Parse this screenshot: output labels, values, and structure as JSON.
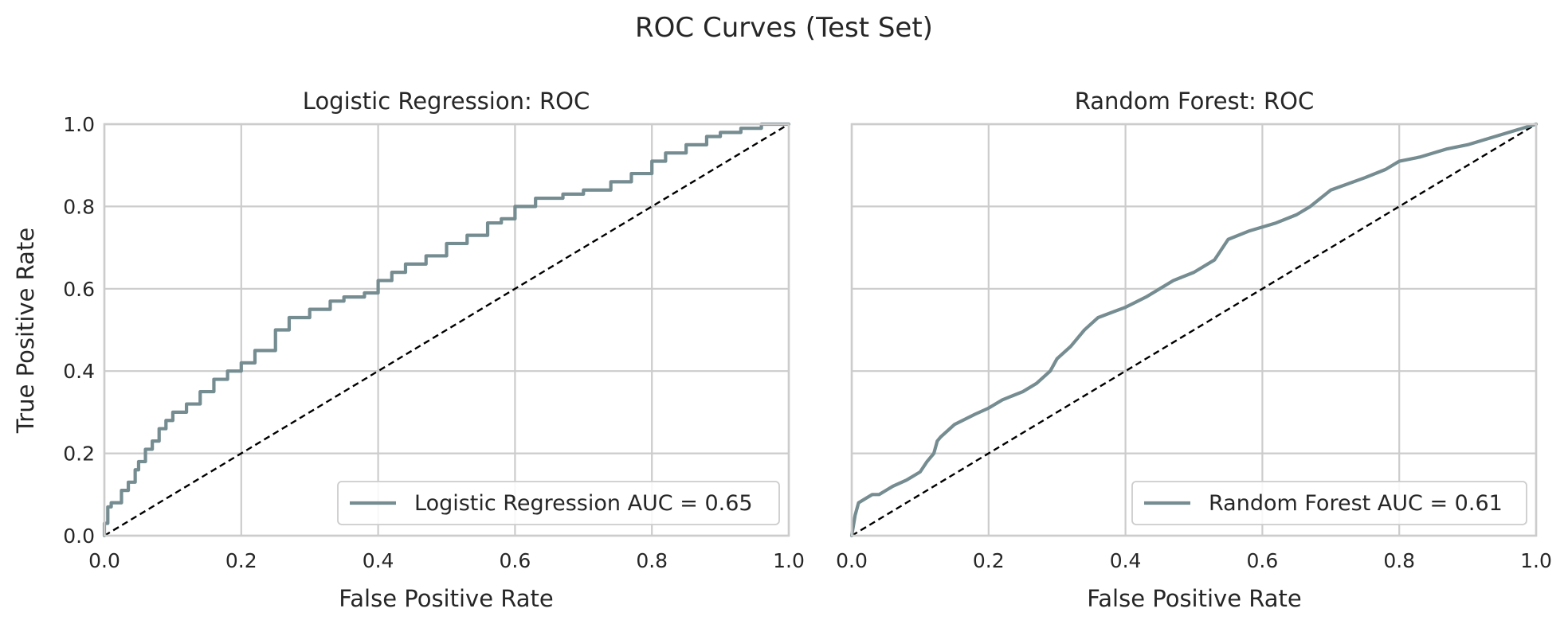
{
  "figure": {
    "title": "ROC Curves (Test Set)"
  },
  "colors": {
    "curve": "#758c91",
    "diagonal": "#000000",
    "grid": "#cccccc"
  },
  "chart_data": [
    {
      "type": "line",
      "title": "Logistic Regression: ROC",
      "xlabel": "False Positive Rate",
      "ylabel": "True Positive Rate",
      "xlim": [
        0,
        1
      ],
      "ylim": [
        0,
        1
      ],
      "xticks": [
        "0.0",
        "0.2",
        "0.4",
        "0.6",
        "0.8",
        "1.0"
      ],
      "yticks": [
        "0.0",
        "0.2",
        "0.4",
        "0.6",
        "0.8",
        "1.0"
      ],
      "grid": true,
      "legend_position": "lower-right",
      "series": [
        {
          "name": "Logistic Regression AUC = 0.65",
          "step": true,
          "x": [
            0,
            0,
            0.005,
            0.005,
            0.01,
            0.01,
            0.025,
            0.025,
            0.035,
            0.035,
            0.045,
            0.045,
            0.05,
            0.05,
            0.06,
            0.06,
            0.07,
            0.07,
            0.08,
            0.08,
            0.09,
            0.09,
            0.1,
            0.1,
            0.12,
            0.12,
            0.14,
            0.14,
            0.16,
            0.16,
            0.18,
            0.18,
            0.2,
            0.2,
            0.22,
            0.22,
            0.25,
            0.25,
            0.27,
            0.27,
            0.3,
            0.3,
            0.33,
            0.33,
            0.35,
            0.35,
            0.38,
            0.38,
            0.4,
            0.4,
            0.42,
            0.42,
            0.44,
            0.44,
            0.47,
            0.47,
            0.5,
            0.5,
            0.53,
            0.53,
            0.56,
            0.56,
            0.58,
            0.58,
            0.6,
            0.6,
            0.63,
            0.63,
            0.67,
            0.67,
            0.7,
            0.7,
            0.74,
            0.74,
            0.77,
            0.77,
            0.8,
            0.8,
            0.82,
            0.82,
            0.85,
            0.85,
            0.88,
            0.88,
            0.9,
            0.9,
            0.93,
            0.93,
            0.96,
            0.96,
            1.0
          ],
          "y": [
            0,
            0.03,
            0.03,
            0.07,
            0.07,
            0.08,
            0.08,
            0.11,
            0.11,
            0.13,
            0.13,
            0.16,
            0.16,
            0.18,
            0.18,
            0.21,
            0.21,
            0.23,
            0.23,
            0.26,
            0.26,
            0.28,
            0.28,
            0.3,
            0.3,
            0.32,
            0.32,
            0.35,
            0.35,
            0.38,
            0.38,
            0.4,
            0.4,
            0.42,
            0.42,
            0.45,
            0.45,
            0.5,
            0.5,
            0.53,
            0.53,
            0.55,
            0.55,
            0.57,
            0.57,
            0.58,
            0.58,
            0.59,
            0.59,
            0.62,
            0.62,
            0.64,
            0.64,
            0.66,
            0.66,
            0.68,
            0.68,
            0.71,
            0.71,
            0.73,
            0.73,
            0.76,
            0.76,
            0.77,
            0.77,
            0.8,
            0.8,
            0.82,
            0.82,
            0.83,
            0.83,
            0.84,
            0.84,
            0.86,
            0.86,
            0.88,
            0.88,
            0.91,
            0.91,
            0.93,
            0.93,
            0.95,
            0.95,
            0.97,
            0.97,
            0.98,
            0.98,
            0.99,
            0.99,
            1.0,
            1.0
          ]
        }
      ]
    },
    {
      "type": "line",
      "title": "Random Forest: ROC",
      "xlabel": "False Positive Rate",
      "ylabel": "",
      "xlim": [
        0,
        1
      ],
      "ylim": [
        0,
        1
      ],
      "xticks": [
        "0.0",
        "0.2",
        "0.4",
        "0.6",
        "0.8",
        "1.0"
      ],
      "yticks": [
        "0.0",
        "0.2",
        "0.4",
        "0.6",
        "0.8",
        "1.0"
      ],
      "show_yticklabels": false,
      "grid": true,
      "legend_position": "lower-right",
      "series": [
        {
          "name": "Random Forest AUC = 0.61",
          "step": false,
          "x": [
            0,
            0.005,
            0.01,
            0.02,
            0.03,
            0.04,
            0.05,
            0.06,
            0.08,
            0.1,
            0.11,
            0.12,
            0.125,
            0.13,
            0.15,
            0.18,
            0.2,
            0.22,
            0.25,
            0.27,
            0.29,
            0.3,
            0.32,
            0.34,
            0.36,
            0.4,
            0.43,
            0.45,
            0.47,
            0.5,
            0.53,
            0.55,
            0.58,
            0.62,
            0.65,
            0.67,
            0.7,
            0.75,
            0.78,
            0.8,
            0.83,
            0.87,
            0.9,
            0.94,
            0.97,
            1.0
          ],
          "y": [
            0,
            0.05,
            0.08,
            0.09,
            0.1,
            0.1,
            0.11,
            0.12,
            0.135,
            0.155,
            0.18,
            0.2,
            0.23,
            0.24,
            0.27,
            0.295,
            0.31,
            0.33,
            0.35,
            0.37,
            0.4,
            0.43,
            0.46,
            0.5,
            0.53,
            0.555,
            0.58,
            0.6,
            0.62,
            0.64,
            0.67,
            0.72,
            0.74,
            0.76,
            0.78,
            0.8,
            0.84,
            0.87,
            0.89,
            0.91,
            0.92,
            0.94,
            0.95,
            0.97,
            0.985,
            1.0
          ]
        }
      ]
    }
  ]
}
